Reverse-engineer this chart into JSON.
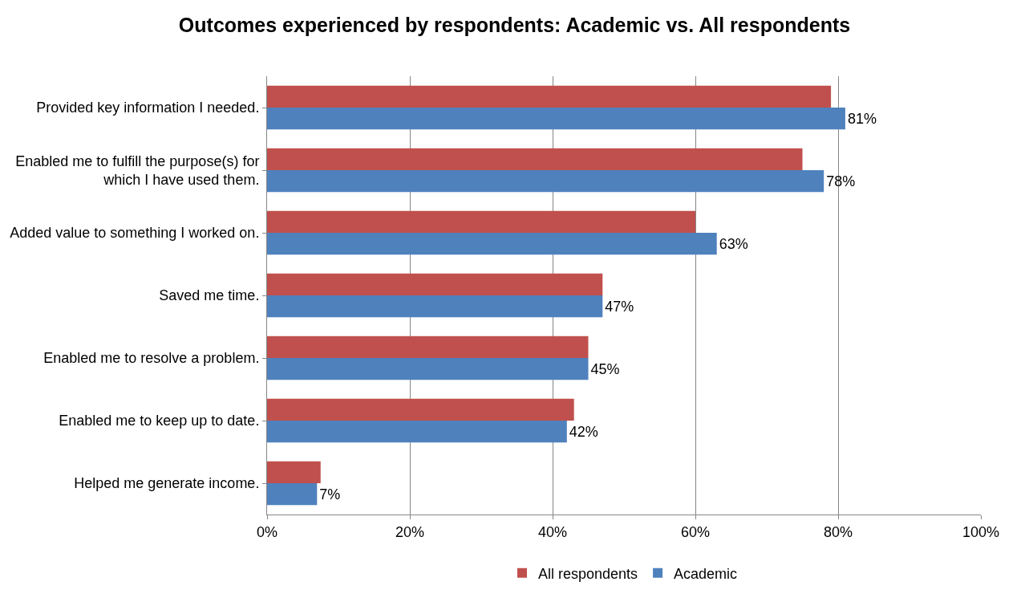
{
  "chart_data": {
    "type": "bar",
    "orientation": "horizontal",
    "title": "Outcomes experienced by respondents: Academic vs. All respondents",
    "categories": [
      "Provided key information I needed.",
      "Enabled me to fulfill the purpose(s) for which I have used them.",
      "Added value to something I worked on.",
      "Saved me time.",
      "Enabled me to resolve a problem.",
      "Enabled me to keep up to date.",
      "Helped me generate income."
    ],
    "series": [
      {
        "name": "All respondents",
        "color": "#c0504d",
        "values": [
          79,
          75,
          60,
          47,
          45,
          43,
          7.5
        ]
      },
      {
        "name": "Academic",
        "color": "#4f81bd",
        "values": [
          81,
          78,
          63,
          47,
          45,
          42,
          7
        ],
        "value_labels": [
          "81%",
          "78%",
          "63%",
          "47%",
          "45%",
          "42%",
          "7%"
        ]
      }
    ],
    "xlim": [
      0,
      100
    ],
    "xticks": [
      {
        "value": 0,
        "label": "0%"
      },
      {
        "value": 20,
        "label": "20%"
      },
      {
        "value": 40,
        "label": "40%"
      },
      {
        "value": 60,
        "label": "60%"
      },
      {
        "value": 80,
        "label": "80%"
      },
      {
        "value": 100,
        "label": "100%"
      }
    ],
    "grid": "x",
    "legend": "bottom"
  }
}
